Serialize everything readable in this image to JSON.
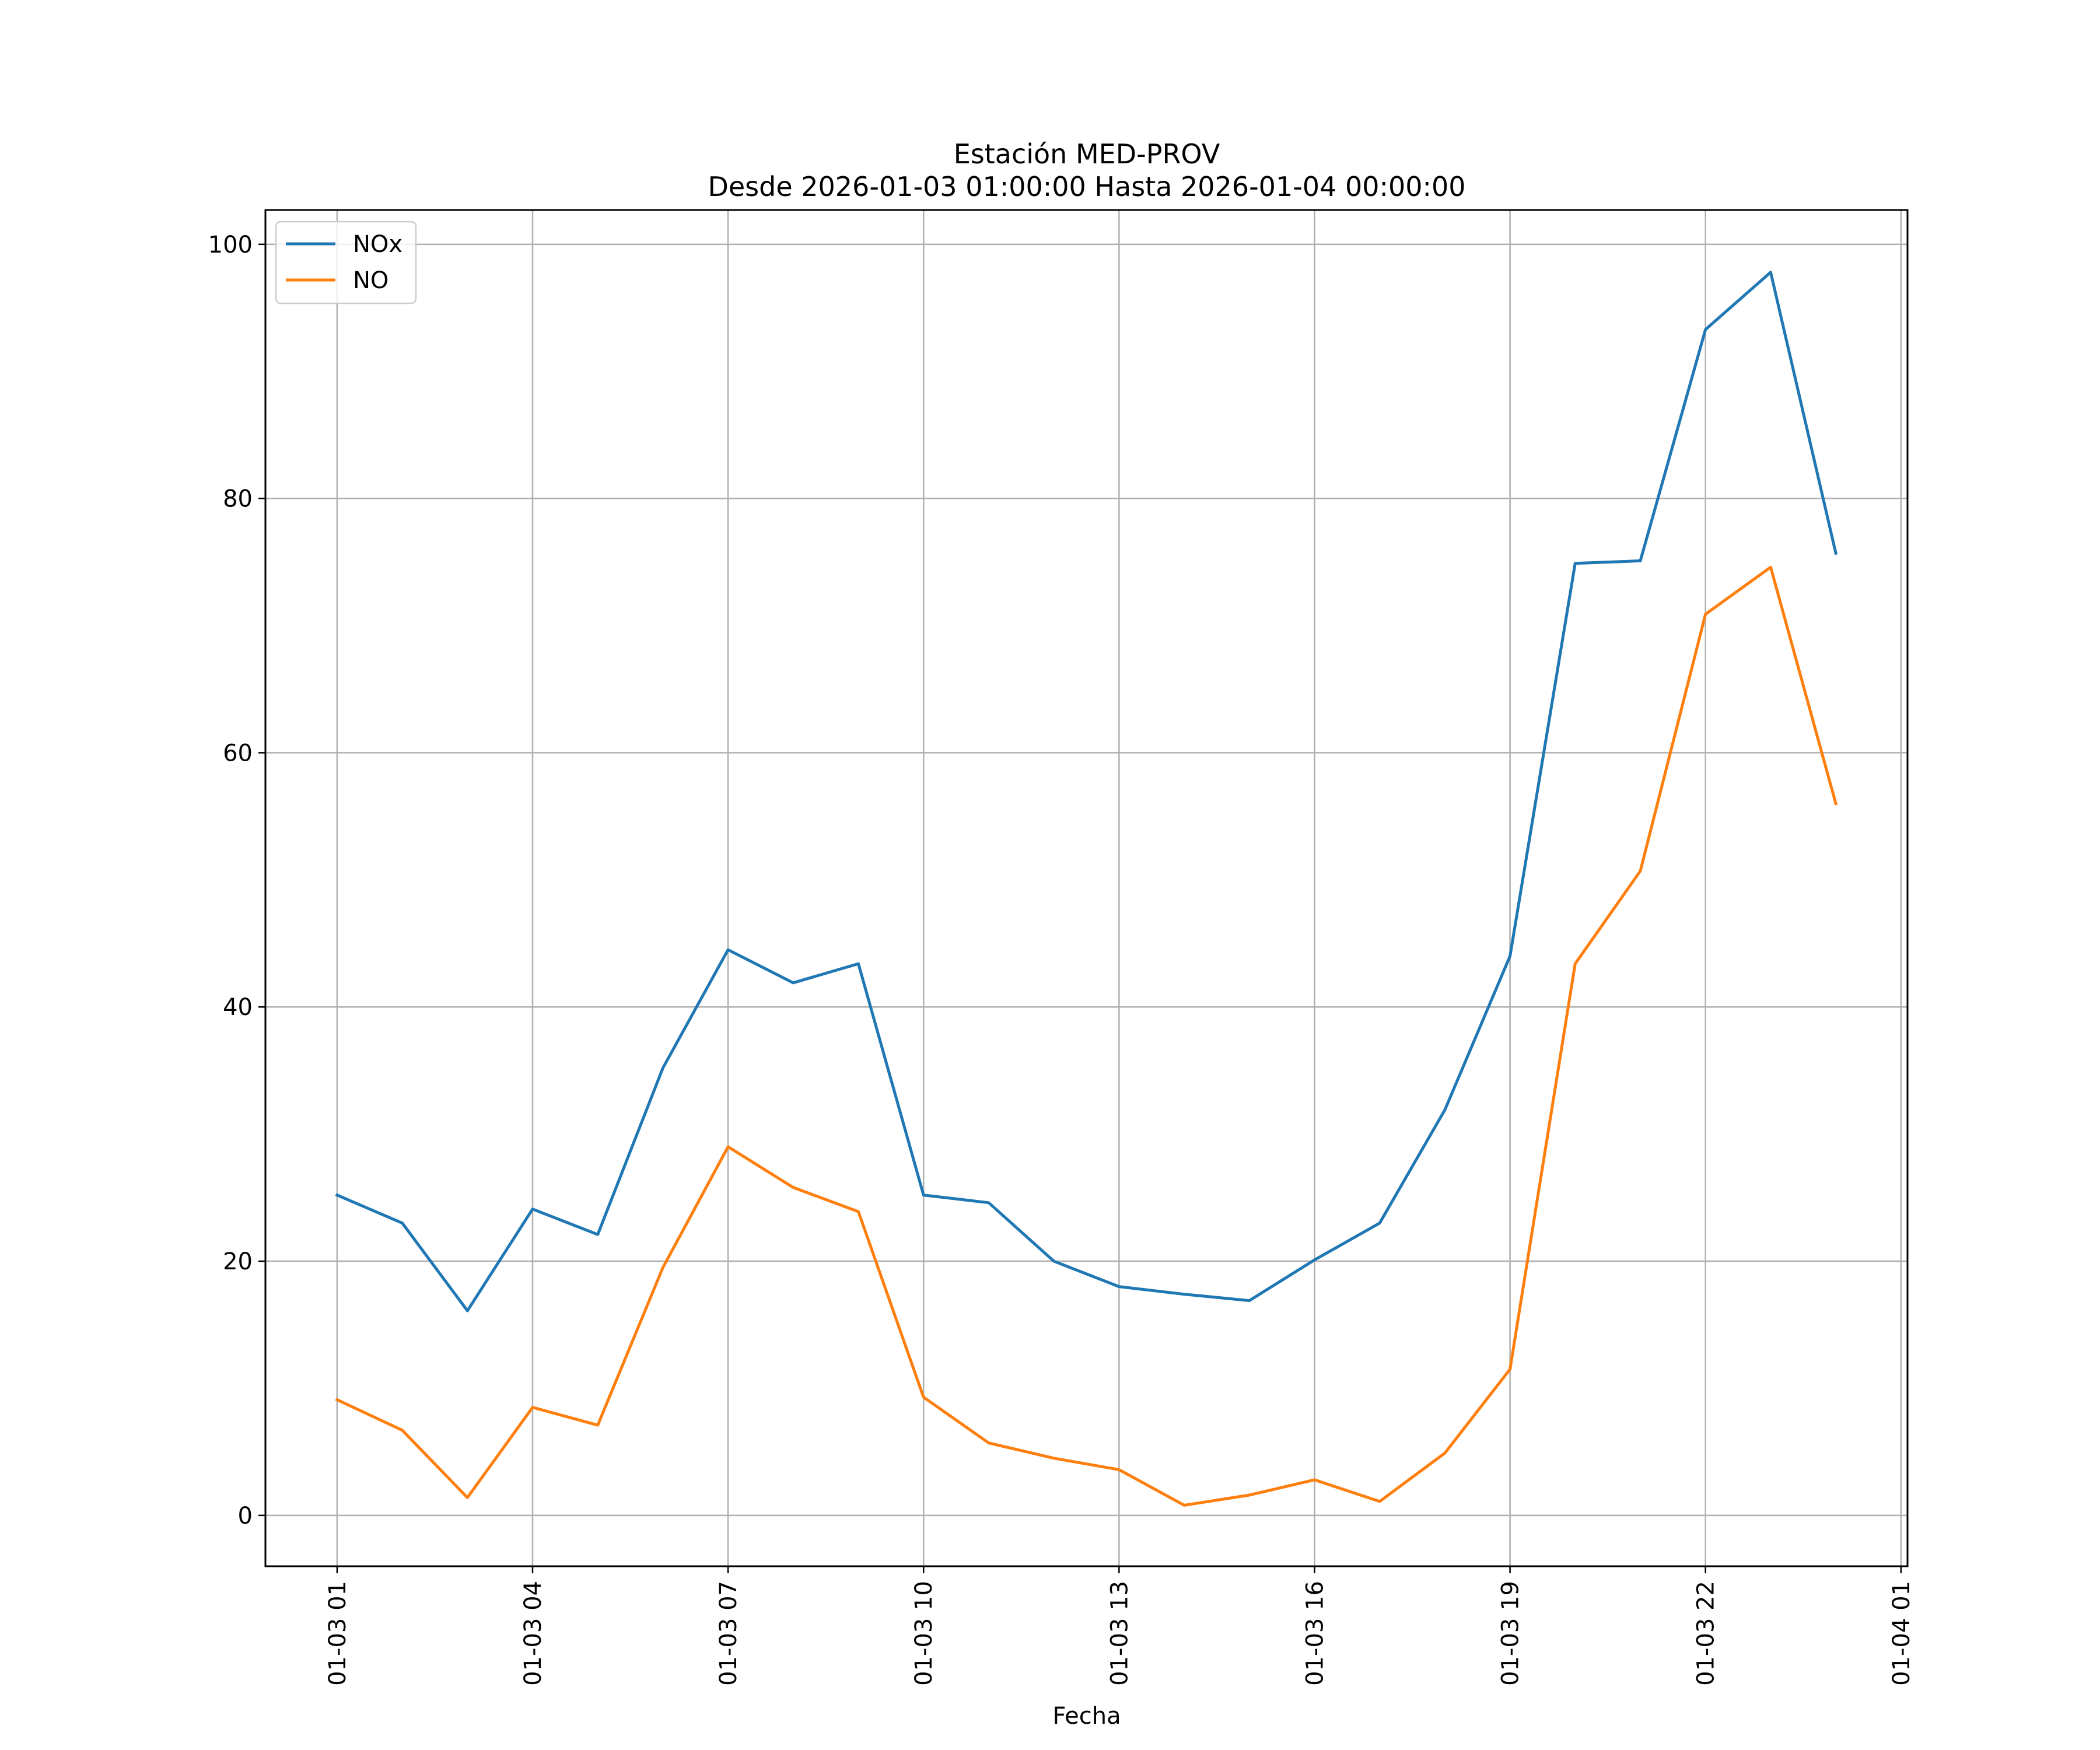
{
  "chart_data": {
    "type": "line",
    "title": "Estación MED-PROV",
    "subtitle": "Desde 2026-01-03 01:00:00 Hasta 2026-01-04 00:00:00",
    "xlabel": "Fecha",
    "ylabel": "",
    "x": [
      "01-03 01",
      "01-03 02",
      "01-03 03",
      "01-03 04",
      "01-03 05",
      "01-03 06",
      "01-03 07",
      "01-03 08",
      "01-03 09",
      "01-03 10",
      "01-03 11",
      "01-03 12",
      "01-03 13",
      "01-03 14",
      "01-03 15",
      "01-03 16",
      "01-03 17",
      "01-03 18",
      "01-03 19",
      "01-03 20",
      "01-03 21",
      "01-03 22",
      "01-03 23",
      "01-04 00"
    ],
    "x_hours": [
      1,
      2,
      3,
      4,
      5,
      6,
      7,
      8,
      9,
      10,
      11,
      12,
      13,
      14,
      15,
      16,
      17,
      18,
      19,
      20,
      21,
      22,
      23,
      24
    ],
    "xlim": [
      -0.1,
      25.1
    ],
    "ylim": [
      -4,
      102.7
    ],
    "x_ticks": [
      {
        "hour": 1,
        "label": "01-03 01"
      },
      {
        "hour": 4,
        "label": "01-03 04"
      },
      {
        "hour": 7,
        "label": "01-03 07"
      },
      {
        "hour": 10,
        "label": "01-03 10"
      },
      {
        "hour": 13,
        "label": "01-03 13"
      },
      {
        "hour": 16,
        "label": "01-03 16"
      },
      {
        "hour": 19,
        "label": "01-03 19"
      },
      {
        "hour": 22,
        "label": "01-03 22"
      },
      {
        "hour": 25,
        "label": "01-04 01"
      }
    ],
    "y_ticks": [
      0,
      20,
      40,
      60,
      80,
      100
    ],
    "grid": true,
    "legend_position": "top-left",
    "series": [
      {
        "name": "NOx",
        "color": "#1f77b4",
        "values": [
          25.2,
          23.0,
          16.1,
          24.1,
          22.1,
          35.2,
          44.5,
          41.9,
          43.4,
          25.2,
          24.6,
          20.0,
          18.0,
          17.4,
          16.9,
          20.1,
          23.0,
          31.9,
          44.0,
          74.9,
          75.1,
          93.3,
          97.8,
          75.7
        ]
      },
      {
        "name": "NO",
        "color": "#ff7f0e",
        "values": [
          9.1,
          6.7,
          1.4,
          8.5,
          7.1,
          19.5,
          29.0,
          25.8,
          23.9,
          9.3,
          5.7,
          4.5,
          3.6,
          0.8,
          1.6,
          2.8,
          1.1,
          4.9,
          11.5,
          43.4,
          50.7,
          70.9,
          74.6,
          56.0
        ]
      }
    ]
  }
}
